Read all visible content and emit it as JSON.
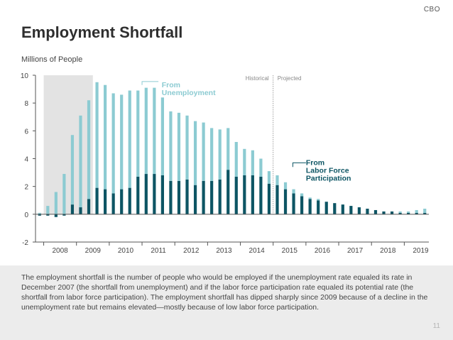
{
  "header": {
    "brand": "CBO",
    "title": "Employment Shortfall"
  },
  "footer": {
    "caption": "The employment shortfall is the number of people who would be employed if the unemployment rate equaled its rate in December 2007 (the shortfall from unemployment) and if the labor force participation rate equaled its potential rate (the shortfall from labor force participation). The employment shortfall has dipped sharply since 2009 because of a decline in the unemployment rate but remains elevated—mostly because of low labor force participation.",
    "page_number": "11"
  },
  "colors": {
    "unemployment": "#8ccbd2",
    "participation": "#0d5564",
    "recession": "#e3e3e3",
    "axis": "#555555"
  },
  "chart_data": {
    "type": "bar",
    "stacked": true,
    "ylabel": "Millions of People",
    "ylim": [
      -2,
      10
    ],
    "yticks": [
      -2,
      0,
      2,
      4,
      6,
      8,
      10
    ],
    "xlim": [
      2007.75,
      2019.75
    ],
    "xtick_labels": [
      "2008",
      "2009",
      "2010",
      "2011",
      "2012",
      "2013",
      "2014",
      "2015",
      "2016",
      "2017",
      "2018",
      "2019"
    ],
    "recession_shading": [
      2008.0,
      2009.5
    ],
    "division_label_left": "Historical",
    "division_label_right": "Projected",
    "division_x": 2015.0,
    "x": [
      2007.875,
      2008.125,
      2008.375,
      2008.625,
      2008.875,
      2009.125,
      2009.375,
      2009.625,
      2009.875,
      2010.125,
      2010.375,
      2010.625,
      2010.875,
      2011.125,
      2011.375,
      2011.625,
      2011.875,
      2012.125,
      2012.375,
      2012.625,
      2012.875,
      2013.125,
      2013.375,
      2013.625,
      2013.875,
      2014.125,
      2014.375,
      2014.625,
      2014.875,
      2015.125,
      2015.375,
      2015.625,
      2015.875,
      2016.125,
      2016.375,
      2016.625,
      2016.875,
      2017.125,
      2017.375,
      2017.625,
      2017.875,
      2018.125,
      2018.375,
      2018.625,
      2018.875,
      2019.125,
      2019.375,
      2019.625
    ],
    "series": [
      {
        "name": "From Labor Force Participation",
        "values": [
          -0.1,
          -0.1,
          -0.2,
          -0.1,
          0.7,
          0.5,
          1.1,
          1.9,
          1.8,
          1.5,
          1.8,
          1.9,
          2.7,
          2.9,
          2.9,
          2.8,
          2.4,
          2.4,
          2.5,
          2.1,
          2.4,
          2.4,
          2.5,
          3.2,
          2.7,
          2.8,
          2.8,
          2.7,
          2.2,
          2.1,
          1.8,
          1.5,
          1.3,
          1.1,
          1.0,
          0.9,
          0.8,
          0.7,
          0.6,
          0.5,
          0.4,
          0.3,
          0.2,
          0.2,
          0.1,
          0.1,
          0.1,
          0.1
        ]
      },
      {
        "name": "From Unemployment",
        "values": [
          0.1,
          0.6,
          1.6,
          2.9,
          5.0,
          6.6,
          7.1,
          7.6,
          7.5,
          7.2,
          6.8,
          7.0,
          6.2,
          6.2,
          6.2,
          5.6,
          5.0,
          4.9,
          4.6,
          4.6,
          4.2,
          3.8,
          3.6,
          3.0,
          2.5,
          1.9,
          1.8,
          1.3,
          0.9,
          0.7,
          0.5,
          0.3,
          0.2,
          0.1,
          0.1,
          0.0,
          0.0,
          0.0,
          0.0,
          0.0,
          0.0,
          0.0,
          0.0,
          0.0,
          0.1,
          0.1,
          0.2,
          0.3
        ]
      }
    ],
    "annotations": [
      {
        "name": "label-unemployment",
        "lines": [
          "From",
          "Unemployment"
        ],
        "series": "From Unemployment"
      },
      {
        "name": "label-participation",
        "lines": [
          "From",
          "Labor Force",
          "Participation"
        ],
        "series": "From Labor Force Participation"
      }
    ]
  }
}
